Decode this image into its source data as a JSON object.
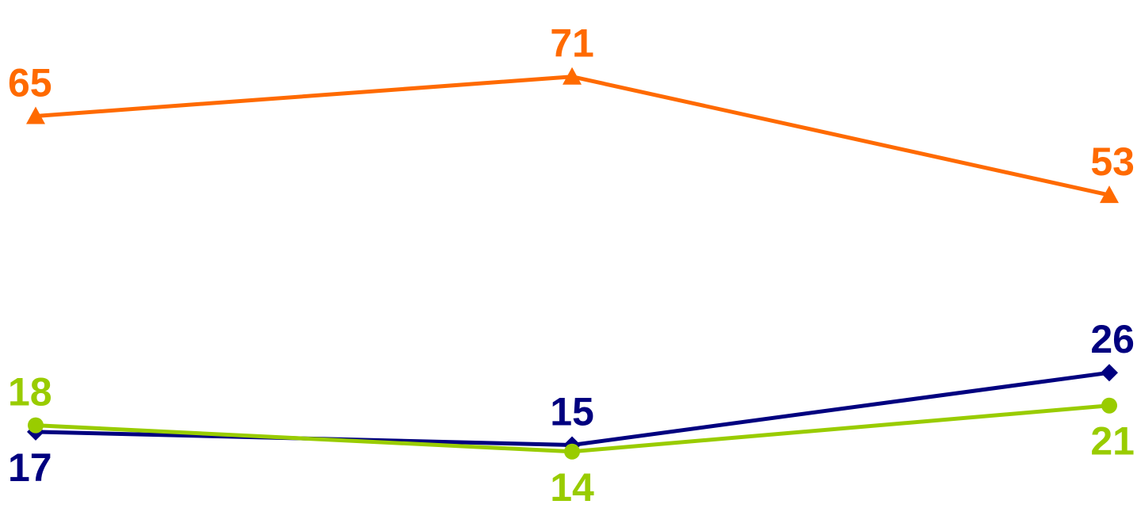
{
  "chart_data": {
    "type": "line",
    "title": "",
    "xlabel": "",
    "ylabel": "",
    "categories": [
      "",
      "",
      ""
    ],
    "ylim": [
      0,
      80
    ],
    "grid": false,
    "legend": "none",
    "series": [
      {
        "values": [
          65,
          71,
          53
        ],
        "labels": [
          "65",
          "71",
          "53"
        ],
        "color": "#FF6A00",
        "marker": "triangle",
        "label_position": [
          "above",
          "above",
          "above"
        ]
      },
      {
        "values": [
          17,
          15,
          26
        ],
        "labels": [
          "17",
          "15",
          "26"
        ],
        "color": "#00007F",
        "marker": "diamond",
        "label_position": [
          "below",
          "above",
          "above"
        ]
      },
      {
        "values": [
          18,
          14,
          21
        ],
        "labels": [
          "18",
          "14",
          "21"
        ],
        "color": "#99CC00",
        "marker": "circle",
        "label_position": [
          "above",
          "below",
          "below"
        ]
      }
    ]
  }
}
